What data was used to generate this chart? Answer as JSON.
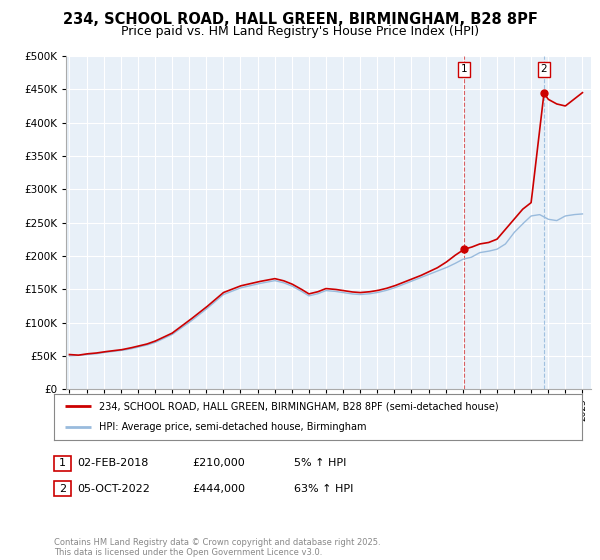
{
  "title": "234, SCHOOL ROAD, HALL GREEN, BIRMINGHAM, B28 8PF",
  "subtitle": "Price paid vs. HM Land Registry's House Price Index (HPI)",
  "title_fontsize": 10.5,
  "subtitle_fontsize": 9,
  "bg_color": "#ffffff",
  "plot_bg_color": "#e8f0f8",
  "grid_color": "#ffffff",
  "legend_label_property": "234, SCHOOL ROAD, HALL GREEN, BIRMINGHAM, B28 8PF (semi-detached house)",
  "legend_label_hpi": "HPI: Average price, semi-detached house, Birmingham",
  "property_color": "#cc0000",
  "hpi_color": "#99bbdd",
  "sale1_date": 2018.08,
  "sale1_price": 210000,
  "sale1_label": "1",
  "sale2_date": 2022.75,
  "sale2_price": 444000,
  "sale2_label": "2",
  "footer": "Contains HM Land Registry data © Crown copyright and database right 2025.\nThis data is licensed under the Open Government Licence v3.0.",
  "ylim": [
    0,
    500000
  ],
  "xlim": [
    1994.8,
    2025.5
  ],
  "yticks": [
    0,
    50000,
    100000,
    150000,
    200000,
    250000,
    300000,
    350000,
    400000,
    450000,
    500000
  ],
  "xticks": [
    1995,
    1996,
    1997,
    1998,
    1999,
    2000,
    2001,
    2002,
    2003,
    2004,
    2005,
    2006,
    2007,
    2008,
    2009,
    2010,
    2011,
    2012,
    2013,
    2014,
    2015,
    2016,
    2017,
    2018,
    2019,
    2020,
    2021,
    2022,
    2023,
    2024,
    2025
  ]
}
